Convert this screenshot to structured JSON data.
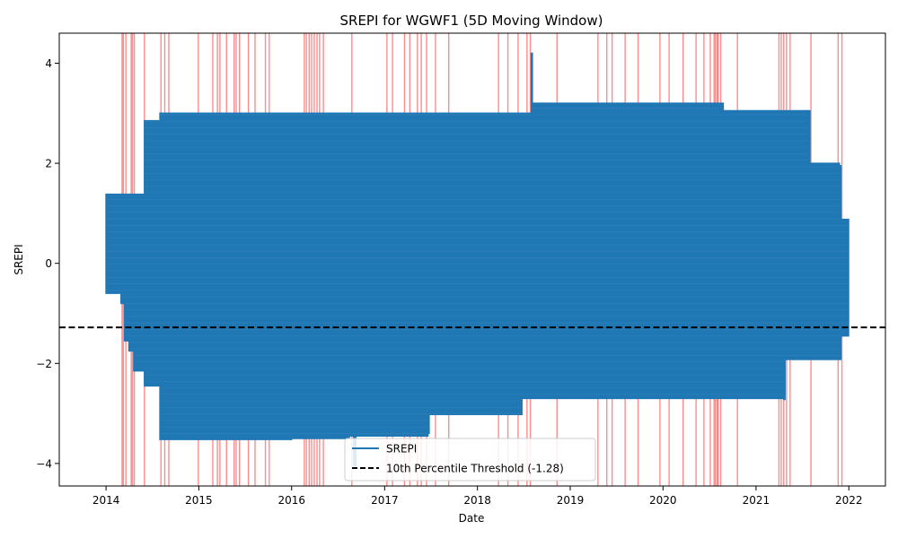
{
  "chart_data": {
    "type": "line",
    "title": "SREPI for WGWF1 (5D Moving Window)",
    "xlabel": "Date",
    "ylabel": "SREPI",
    "xlim": [
      "2013-07-01",
      "2022-05-25"
    ],
    "ylim": [
      -4.45,
      4.6
    ],
    "x_ticks": [
      "2014",
      "2015",
      "2016",
      "2017",
      "2018",
      "2019",
      "2020",
      "2021",
      "2022"
    ],
    "y_ticks": [
      4,
      2,
      0,
      -2,
      -4
    ],
    "y_tick_labels": [
      "4",
      "2",
      "0",
      "−2",
      "−4"
    ],
    "grid": false,
    "legend_position": "bottom-center",
    "legend": [
      {
        "label": "SREPI",
        "style": "solid",
        "color": "#1f77b4"
      },
      {
        "label": "10th Percentile Threshold (-1.28)",
        "style": "dashed",
        "color": "#000000"
      }
    ],
    "threshold": -1.28,
    "series": [
      {
        "name": "SREPI",
        "color": "#1f77b4",
        "envelope": [
          {
            "x": "2014-01-01",
            "min": -0.6,
            "max": 1.38
          },
          {
            "x": "2014-03-01",
            "min": -0.8,
            "max": 1.38
          },
          {
            "x": "2014-03-15",
            "min": -1.55,
            "max": 1.38
          },
          {
            "x": "2014-04-01",
            "min": -1.75,
            "max": 1.38
          },
          {
            "x": "2014-04-20",
            "min": -2.15,
            "max": 1.38
          },
          {
            "x": "2014-06-01",
            "min": -2.45,
            "max": 2.85
          },
          {
            "x": "2014-08-01",
            "min": -3.52,
            "max": 3.0
          },
          {
            "x": "2015-06-15",
            "min": -3.52,
            "max": 3.0
          },
          {
            "x": "2016-01-01",
            "min": -3.5,
            "max": 3.0
          },
          {
            "x": "2016-08-15",
            "min": -3.45,
            "max": 3.0
          },
          {
            "x": "2016-09-01",
            "min": -4.05,
            "max": 3.0
          },
          {
            "x": "2016-09-10",
            "min": -3.45,
            "max": 3.0
          },
          {
            "x": "2017-06-20",
            "min": -3.4,
            "max": 3.0
          },
          {
            "x": "2017-06-25",
            "min": -3.02,
            "max": 3.0
          },
          {
            "x": "2018-06-20",
            "min": -3.02,
            "max": 3.0
          },
          {
            "x": "2018-06-25",
            "min": -2.7,
            "max": 3.0
          },
          {
            "x": "2018-08-01",
            "min": -2.7,
            "max": 4.2
          },
          {
            "x": "2018-08-05",
            "min": -2.7,
            "max": 3.2
          },
          {
            "x": "2020-08-20",
            "min": -2.7,
            "max": 3.2
          },
          {
            "x": "2020-08-25",
            "min": -2.7,
            "max": 3.05
          },
          {
            "x": "2021-04-20",
            "min": -2.72,
            "max": 3.05
          },
          {
            "x": "2021-04-25",
            "min": -1.92,
            "max": 3.05
          },
          {
            "x": "2021-07-25",
            "min": -1.92,
            "max": 3.05
          },
          {
            "x": "2021-08-01",
            "min": -1.92,
            "max": 2.0
          },
          {
            "x": "2021-11-25",
            "min": -1.92,
            "max": 1.95
          },
          {
            "x": "2021-12-01",
            "min": -1.45,
            "max": 0.88
          },
          {
            "x": "2021-12-31",
            "min": -1.2,
            "max": 0.85
          }
        ]
      }
    ],
    "drought_markers": {
      "color": "#ff0000",
      "dates": [
        "2014-03-05",
        "2014-03-10",
        "2014-03-20",
        "2014-04-10",
        "2014-04-15",
        "2014-04-22",
        "2014-06-01",
        "2014-08-05",
        "2014-08-20",
        "2014-09-05",
        "2014-12-30",
        "2015-02-25",
        "2015-03-15",
        "2015-03-25",
        "2015-04-20",
        "2015-05-20",
        "2015-05-28",
        "2015-06-10",
        "2015-07-15",
        "2015-08-10",
        "2015-09-20",
        "2015-10-05",
        "2016-02-20",
        "2016-02-28",
        "2016-03-10",
        "2016-03-20",
        "2016-03-30",
        "2016-04-10",
        "2016-04-20",
        "2016-05-05",
        "2016-08-25",
        "2017-01-10",
        "2017-02-01",
        "2017-03-20",
        "2017-04-10",
        "2017-05-10",
        "2017-05-25",
        "2017-06-15",
        "2017-07-20",
        "2017-09-10",
        "2018-03-25",
        "2018-05-01",
        "2018-06-10",
        "2018-07-15",
        "2018-07-28",
        "2018-11-10",
        "2019-04-20",
        "2019-05-25",
        "2019-06-15",
        "2019-08-05",
        "2019-09-25",
        "2019-12-20",
        "2020-01-25",
        "2020-03-20",
        "2020-05-10",
        "2020-06-10",
        "2020-07-05",
        "2020-07-20",
        "2020-07-25",
        "2020-08-01",
        "2020-08-05",
        "2020-08-15",
        "2020-10-20",
        "2021-04-01",
        "2021-04-10",
        "2021-04-20",
        "2021-05-01",
        "2021-05-15",
        "2021-08-05",
        "2021-11-20",
        "2021-12-05"
      ]
    }
  }
}
